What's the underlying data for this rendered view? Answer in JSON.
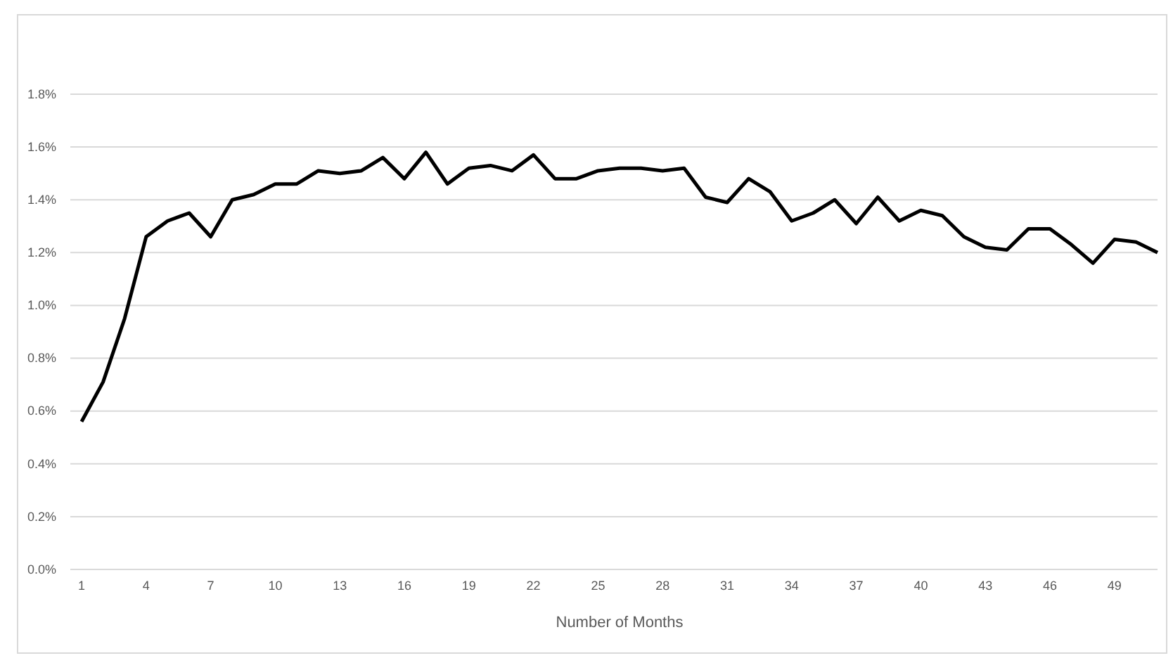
{
  "chart_data": {
    "type": "line",
    "xlabel": "Number of Months",
    "categories": [
      "1",
      null,
      null,
      "4",
      null,
      null,
      "7",
      null,
      null,
      "10",
      null,
      null,
      "13",
      null,
      null,
      "16",
      null,
      null,
      "19",
      null,
      null,
      "22",
      null,
      null,
      "25",
      null,
      null,
      "28",
      null,
      null,
      "31",
      null,
      null,
      "34",
      null,
      null,
      "37",
      null,
      null,
      "40",
      null,
      null,
      "43",
      null,
      null,
      "46",
      null,
      null,
      "49",
      null,
      null
    ],
    "series": [
      {
        "color": "#000000",
        "values": [
          0.56,
          0.71,
          0.95,
          1.26,
          1.32,
          1.35,
          1.26,
          1.4,
          1.42,
          1.46,
          1.46,
          1.51,
          1.5,
          1.51,
          1.56,
          1.48,
          1.58,
          1.46,
          1.52,
          1.53,
          1.51,
          1.57,
          1.48,
          1.48,
          1.51,
          1.52,
          1.52,
          1.51,
          1.52,
          1.41,
          1.39,
          1.48,
          1.43,
          1.32,
          1.35,
          1.4,
          1.31,
          1.41,
          1.32,
          1.36,
          1.34,
          1.26,
          1.22,
          1.21,
          1.29,
          1.29,
          1.23,
          1.16,
          1.25,
          1.24,
          1.2
        ]
      }
    ],
    "ylim": [
      0,
      1.8
    ],
    "yticks": [
      {
        "value": 0,
        "label": "0.0%"
      },
      {
        "value": 0.2,
        "label": "0.2%"
      },
      {
        "value": 0.4,
        "label": "0.4%"
      },
      {
        "value": 0.6,
        "label": "0.6%"
      },
      {
        "value": 0.8,
        "label": "0.8%"
      },
      {
        "value": 1.0,
        "label": "1.0%"
      },
      {
        "value": 1.2,
        "label": "1.2%"
      },
      {
        "value": 1.4,
        "label": "1.4%"
      },
      {
        "value": 1.6,
        "label": "1.6%"
      },
      {
        "value": 1.8,
        "label": "1.8%"
      }
    ],
    "grid": "y",
    "marker": "none",
    "line_style": "solid"
  }
}
